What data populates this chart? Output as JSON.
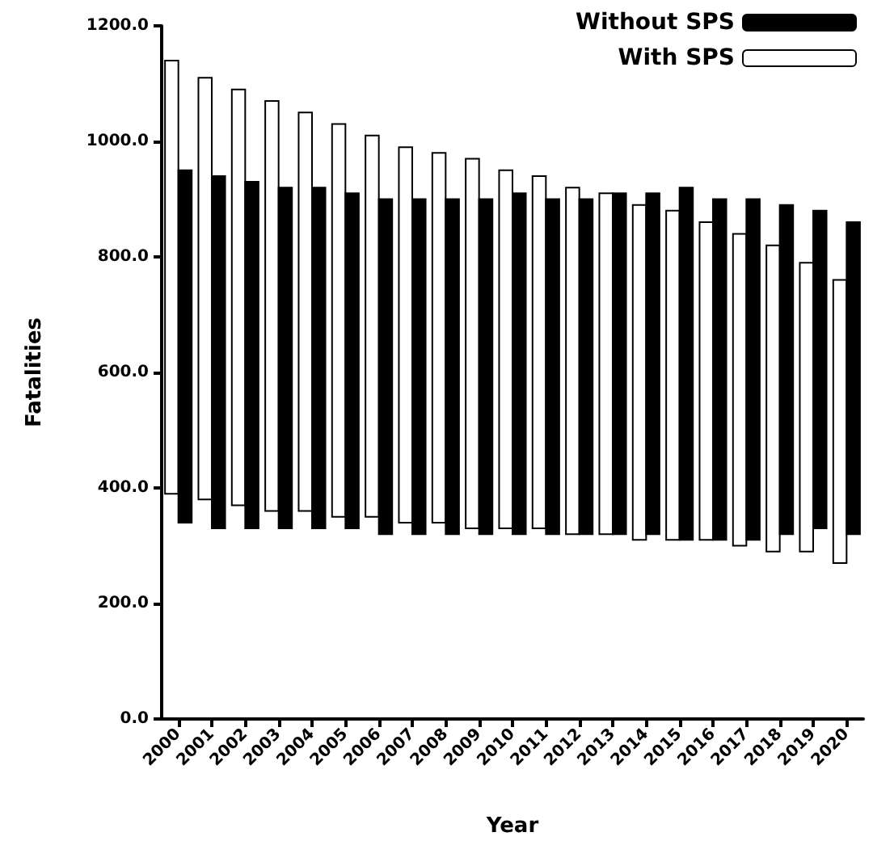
{
  "chart_data": {
    "type": "bar",
    "xlabel": "Year",
    "ylabel": "Fatalities",
    "categories": [
      "2000",
      "2001",
      "2002",
      "2003",
      "2004",
      "2005",
      "2006",
      "2007",
      "2008",
      "2009",
      "2010",
      "2011",
      "2012",
      "2013",
      "2014",
      "2015",
      "2016",
      "2017",
      "2018",
      "2019",
      "2020"
    ],
    "series": [
      {
        "name": "With SPS",
        "color": "#ffffff",
        "base": [
          390,
          380,
          370,
          360,
          360,
          350,
          350,
          340,
          340,
          330,
          330,
          330,
          320,
          320,
          310,
          310,
          310,
          300,
          290,
          290,
          270
        ],
        "values": [
          750,
          730,
          720,
          710,
          690,
          680,
          660,
          650,
          640,
          640,
          620,
          610,
          600,
          590,
          580,
          570,
          550,
          540,
          530,
          500,
          490
        ]
      },
      {
        "name": "Without SPS",
        "color": "#000000",
        "base": [
          340,
          330,
          330,
          330,
          330,
          330,
          320,
          320,
          320,
          320,
          320,
          320,
          320,
          320,
          320,
          310,
          310,
          310,
          320,
          330,
          320
        ],
        "values": [
          610,
          610,
          600,
          590,
          590,
          580,
          580,
          580,
          580,
          580,
          590,
          580,
          580,
          590,
          590,
          610,
          590,
          590,
          570,
          550,
          540
        ]
      }
    ],
    "ylim": [
      0,
      1200
    ],
    "yticks": [
      {
        "value": 0,
        "label": "0.0"
      },
      {
        "value": 200,
        "label": "200.0"
      },
      {
        "value": 400,
        "label": "400.0"
      },
      {
        "value": 600,
        "label": "600.0"
      },
      {
        "value": 800,
        "label": "800.0"
      },
      {
        "value": 1000,
        "label": "1000.0"
      },
      {
        "value": 1200,
        "label": "1200.0"
      }
    ],
    "grid": false,
    "legend": "top right"
  }
}
